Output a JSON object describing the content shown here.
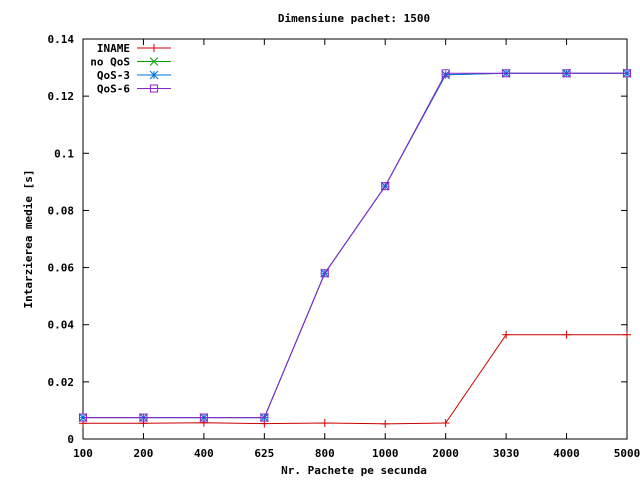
{
  "chart_data": {
    "type": "line",
    "title": "Dimensiune pachet: 1500",
    "xlabel": "Nr. Pachete pe secunda",
    "ylabel": "Intarzierea medie [s]",
    "categories": [
      "100",
      "200",
      "400",
      "625",
      "800",
      "1000",
      "2000",
      "3030",
      "4000",
      "5000"
    ],
    "ylim": [
      0,
      0.14
    ],
    "yticks": [
      "0",
      "0.02",
      "0.04",
      "0.06",
      "0.08",
      "0.1",
      "0.12",
      "0.14"
    ],
    "ytick_values": [
      0,
      0.02,
      0.04,
      0.06,
      0.08,
      0.1,
      0.12,
      0.14
    ],
    "grid": false,
    "legend_position": "top-left",
    "series": [
      {
        "name": "INAME",
        "color": "#cc0000",
        "marker": "plus",
        "values": [
          0.0055,
          0.0055,
          0.0057,
          0.0054,
          0.0056,
          0.0053,
          0.0056,
          0.0365,
          0.0365,
          0.0365
        ]
      },
      {
        "name": "no QoS",
        "color": "#00a000",
        "marker": "cross",
        "values": [
          0.0075,
          0.0075,
          0.0075,
          0.0075,
          0.058,
          0.0885,
          0.1275,
          0.128,
          0.128,
          0.128
        ]
      },
      {
        "name": "QoS-3",
        "color": "#0070e0",
        "marker": "star",
        "values": [
          0.0075,
          0.0075,
          0.0075,
          0.0075,
          0.058,
          0.0885,
          0.1275,
          0.128,
          0.128,
          0.128
        ]
      },
      {
        "name": "QoS-6",
        "color": "#9020d0",
        "marker": "square",
        "values": [
          0.0075,
          0.0075,
          0.0075,
          0.0075,
          0.058,
          0.0885,
          0.128,
          0.128,
          0.128,
          0.128
        ]
      }
    ]
  }
}
